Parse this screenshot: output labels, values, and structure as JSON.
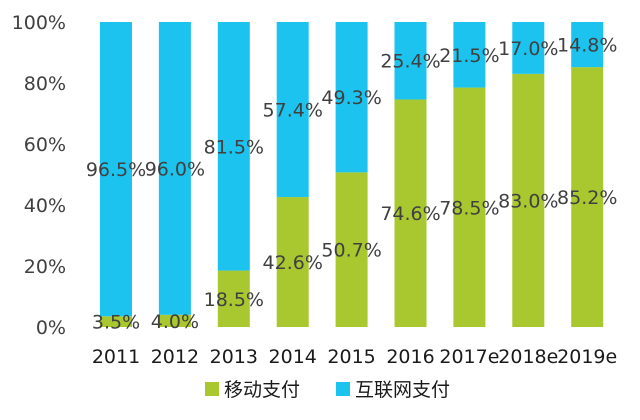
{
  "chart_data": {
    "type": "bar",
    "stacked": true,
    "percent": true,
    "categories": [
      "2011",
      "2012",
      "2013",
      "2014",
      "2015",
      "2016",
      "2017e",
      "2018e",
      "2019e"
    ],
    "series": [
      {
        "name": "移动支付",
        "color": "#a9c82f",
        "values": [
          3.5,
          4.0,
          18.5,
          42.6,
          50.7,
          74.6,
          78.5,
          83.0,
          85.2
        ]
      },
      {
        "name": "互联网支付",
        "color": "#1cc3ee",
        "values": [
          96.5,
          96.0,
          81.5,
          57.4,
          49.3,
          25.4,
          21.5,
          17.0,
          14.8
        ]
      }
    ],
    "value_labels": {
      "移动支付": [
        "3.5%",
        "4.0%",
        "18.5%",
        "42.6%",
        "50.7%",
        "74.6%",
        "78.5%",
        "83.0%",
        "85.2%"
      ],
      "互联网支付": [
        "96.5%",
        "96.0%",
        "81.5%",
        "57.4%",
        "49.3%",
        "25.4%",
        "21.5%",
        "17.0%",
        "14.8%"
      ]
    },
    "ylim": [
      0,
      100
    ],
    "yticks": [
      "0%",
      "20%",
      "40%",
      "60%",
      "80%",
      "100%"
    ],
    "legend_position": "bottom",
    "grid": false
  }
}
